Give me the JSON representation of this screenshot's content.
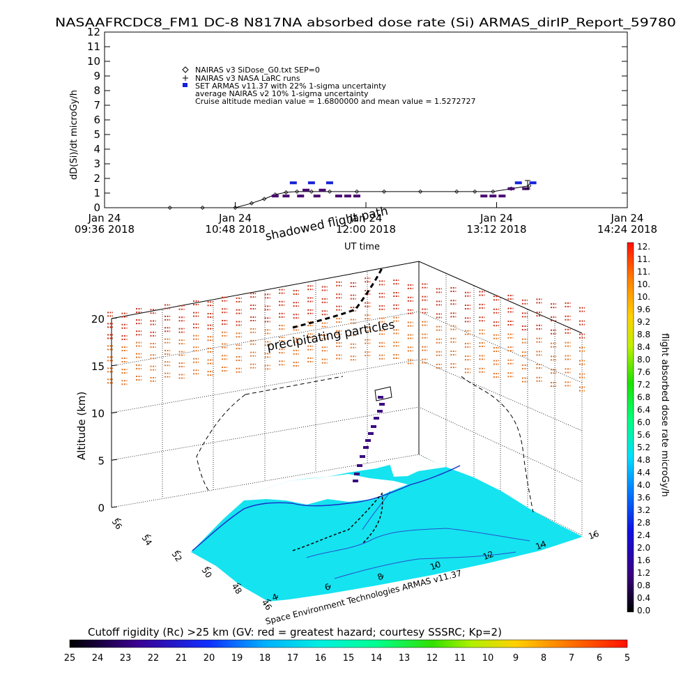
{
  "header": {
    "title": "NASAAFRCDC8_FM1 DC-8    N817NA absorbed dose rate (Si) ARMAS_dirIP_Report_59780"
  },
  "chart_data": [
    {
      "type": "scatter",
      "ylabel": "dD(Si)/dt microGy/h",
      "xlabel": "UT time",
      "ylim": [
        0,
        12
      ],
      "yticks": [
        "0",
        "1",
        "2",
        "3",
        "4",
        "5",
        "6",
        "7",
        "8",
        "9",
        "10",
        "11",
        "12"
      ],
      "xticks": [
        {
          "l1": "Jan 24",
          "l2": "09:36 2018"
        },
        {
          "l1": "Jan 24",
          "l2": "10:48 2018"
        },
        {
          "l1": "Jan 24",
          "l2": "12:00 2018"
        },
        {
          "l1": "Jan 24",
          "l2": "13:12 2018"
        },
        {
          "l1": "Jan 24",
          "l2": "14:24 2018"
        }
      ],
      "xlim": [
        "09:36",
        "14:24"
      ],
      "legend": [
        "NAIRAS v3 SiDose_G0.txt SEP=0",
        "NAIRAS v3 NASA LaRC runs",
        "SET ARMAS v11.37 with 22% 1-sigma uncertainty",
        "average NAIRAS v2 10% 1-sigma uncertainty",
        "Cruise altitude median value = 1.6800000 and mean value = 1.5272727"
      ],
      "series": [
        {
          "name": "NAIRAS v3 SiDose_G0.txt SEP=0",
          "x": [
            "10:12",
            "10:30",
            "10:48",
            "10:57",
            "11:04",
            "11:10",
            "11:16",
            "11:22",
            "11:30",
            "11:40",
            "11:55",
            "12:10",
            "12:30",
            "12:50",
            "13:00",
            "13:10",
            "13:20",
            "13:30"
          ],
          "y": [
            0,
            0,
            0,
            0.3,
            0.6,
            0.9,
            1.05,
            1.1,
            1.1,
            1.1,
            1.1,
            1.1,
            1.1,
            1.1,
            1.1,
            1.1,
            1.3,
            1.5
          ]
        },
        {
          "name": "SET ARMAS v11.37 with 22% 1-sigma uncertainty",
          "x": [
            "11:10",
            "11:16",
            "11:20",
            "11:24",
            "11:27",
            "11:30",
            "11:33",
            "11:36",
            "11:40",
            "11:45",
            "11:50",
            "11:55",
            "13:05",
            "13:10",
            "13:15",
            "13:20",
            "13:24",
            "13:28",
            "13:32"
          ],
          "y": [
            0.8,
            0.8,
            1.7,
            0.8,
            1.2,
            1.7,
            0.8,
            1.2,
            1.7,
            0.8,
            0.8,
            0.8,
            0.8,
            0.8,
            0.8,
            1.3,
            1.7,
            1.3,
            1.7
          ]
        }
      ]
    },
    {
      "type": "scatter",
      "zlabel": "Altitude (km)",
      "zticks": [
        "0",
        "5",
        "10",
        "15",
        "20"
      ],
      "zlim": [
        0,
        20
      ],
      "lat_ticks": [
        "56",
        "54",
        "52",
        "50",
        "48",
        "46"
      ],
      "lon_ticks": [
        "4",
        "6",
        "8",
        "10",
        "12",
        "14",
        "16"
      ],
      "annotations": [
        "shadowed flight path",
        "precipitating particles",
        "Space Environment Technologies ARMAS v11.37"
      ],
      "dose_colorbar": {
        "label": "flight absorbed dose rate microGy/h",
        "ticks": [
          "12.",
          "11.",
          "11.",
          "10.",
          "10.",
          "9.6",
          "9.2",
          "8.8",
          "8.4",
          "8.0",
          "7.6",
          "7.2",
          "6.8",
          "6.4",
          "6.0",
          "5.6",
          "5.2",
          "4.8",
          "4.4",
          "4.0",
          "3.6",
          "3.2",
          "2.8",
          "2.4",
          "2.0",
          "1.6",
          "1.2",
          "0.8",
          "0.4",
          "0.0"
        ]
      },
      "rigidity_colorbar": {
        "label": "Cutoff rigidity (Rc) >25 km (GV: red = greatest hazard; courtesy SSSRC; Kp=2)",
        "ticks": [
          "25",
          "24",
          "23",
          "22",
          "21",
          "20",
          "19",
          "18",
          "17",
          "16",
          "15",
          "14",
          "13",
          "12",
          "11",
          "10",
          "9",
          "8",
          "7",
          "6",
          "5"
        ]
      },
      "colors": {
        "land": "#15e3f0",
        "sea": "#ffffff",
        "radiation": "#e0541a"
      }
    }
  ]
}
